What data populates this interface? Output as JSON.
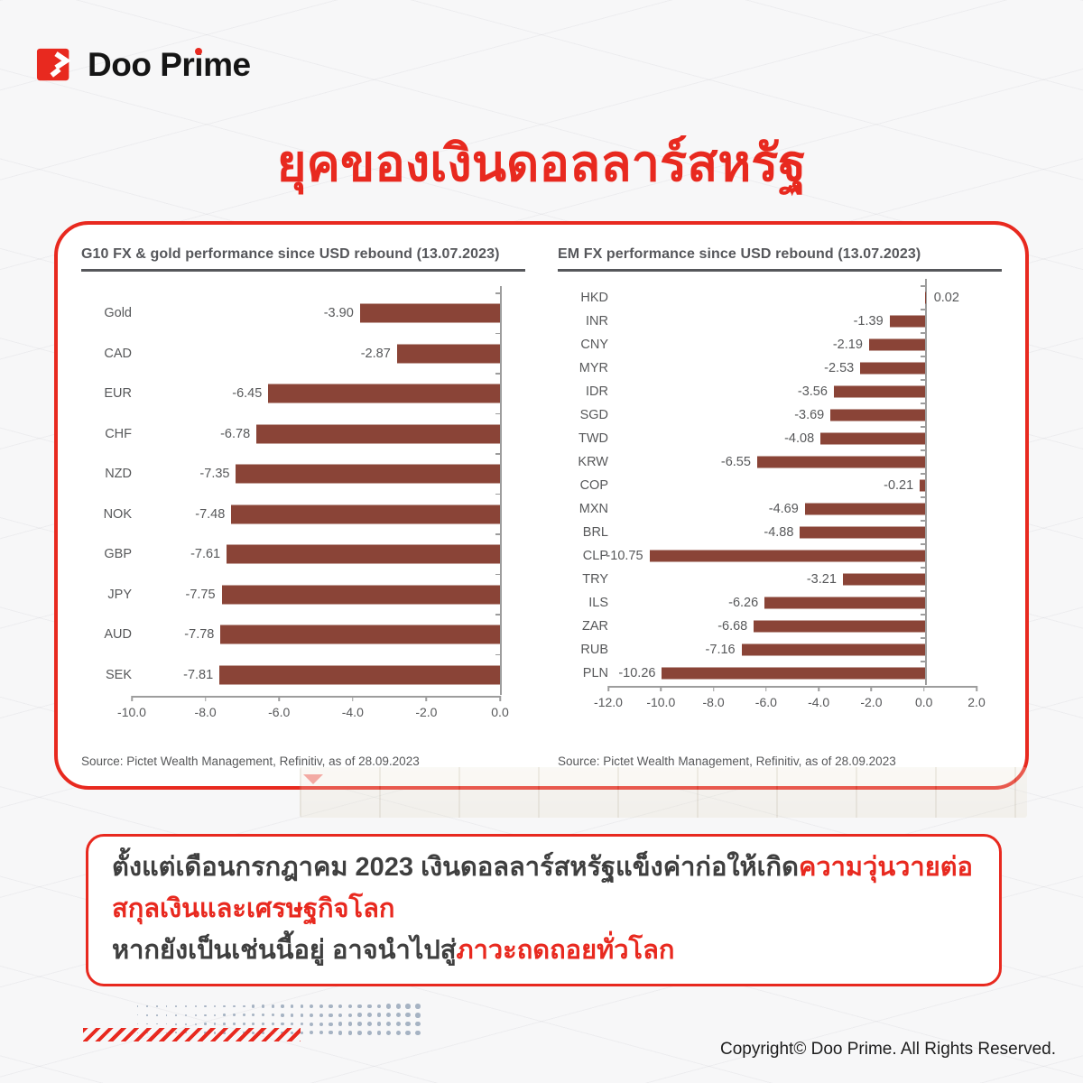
{
  "logo": {
    "brand_pre": "Doo Pr",
    "brand_i": "i",
    "brand_post": "me"
  },
  "title": "ยุคของเงินดอลลาร์สหรัฐ",
  "chart_data": [
    {
      "type": "bar",
      "orientation": "horizontal",
      "title": "G10 FX & gold performance since USD rebound (13.07.2023)",
      "source": "Source: Pictet Wealth Management, Refinitiv, as of 28.09.2023",
      "categories": [
        "Gold",
        "CAD",
        "EUR",
        "CHF",
        "NZD",
        "NOK",
        "GBP",
        "JPY",
        "AUD",
        "SEK"
      ],
      "values": [
        -3.9,
        -2.87,
        -6.45,
        -6.78,
        -7.35,
        -7.48,
        -7.61,
        -7.75,
        -7.78,
        -7.81
      ],
      "xmin": -10.0,
      "xmax": 0.0,
      "ticks": [
        -10.0,
        -8.0,
        -6.0,
        -4.0,
        -2.0,
        0.0
      ],
      "xlabel": "",
      "ylabel": "",
      "grid": false,
      "legend": "none",
      "bar_color": "#8a4437"
    },
    {
      "type": "bar",
      "orientation": "horizontal",
      "title": "EM FX performance since USD rebound (13.07.2023)",
      "source": "Source: Pictet Wealth Management, Refinitiv, as of 28.09.2023",
      "categories": [
        "HKD",
        "INR",
        "CNY",
        "MYR",
        "IDR",
        "SGD",
        "TWD",
        "KRW",
        "COP",
        "MXN",
        "BRL",
        "CLP",
        "TRY",
        "ILS",
        "ZAR",
        "RUB",
        "PLN"
      ],
      "values": [
        0.02,
        -1.39,
        -2.19,
        -2.53,
        -3.56,
        -3.69,
        -4.08,
        -6.55,
        -0.21,
        -4.69,
        -4.88,
        -10.75,
        -3.21,
        -6.26,
        -6.68,
        -7.16,
        -10.26
      ],
      "xmin": -12.0,
      "xmax": 2.0,
      "ticks": [
        -12.0,
        -10.0,
        -8.0,
        -6.0,
        -4.0,
        -2.0,
        0.0,
        2.0
      ],
      "xlabel": "",
      "ylabel": "",
      "grid": false,
      "legend": "none",
      "bar_color": "#8a4437"
    }
  ],
  "summary": {
    "lines": [
      [
        {
          "text": "ตั้งแต่เดือนกรกฎาคม 2023 เงินดอลลาร์สหรัฐแข็งค่าก่อให้เกิด",
          "style": "dark"
        },
        {
          "text": "ความวุ่นวายต่อ",
          "style": "red"
        }
      ],
      [
        {
          "text": "สกุลเงินและเศรษฐกิจโลก",
          "style": "red"
        }
      ],
      [
        {
          "text": "หากยังเป็นเช่นนี้อยู่ อาจนำไปสู่",
          "style": "dark"
        },
        {
          "text": "ภาวะถดถอยทั่วโลก",
          "style": "red"
        }
      ]
    ]
  },
  "footer": {
    "copyright": "Copyright© Doo Prime. All Rights Reserved."
  },
  "colors": {
    "brand_red": "#e8291f",
    "bar_maroon": "#8a4437",
    "chart_text": "#57585a",
    "axis_gray": "#9d9d9d",
    "dark_text": "#3f3f3f",
    "dots_bluegray": "#a6b3c3",
    "panel_bg": "#ffffff",
    "page_bg": "#f7f7f8"
  }
}
